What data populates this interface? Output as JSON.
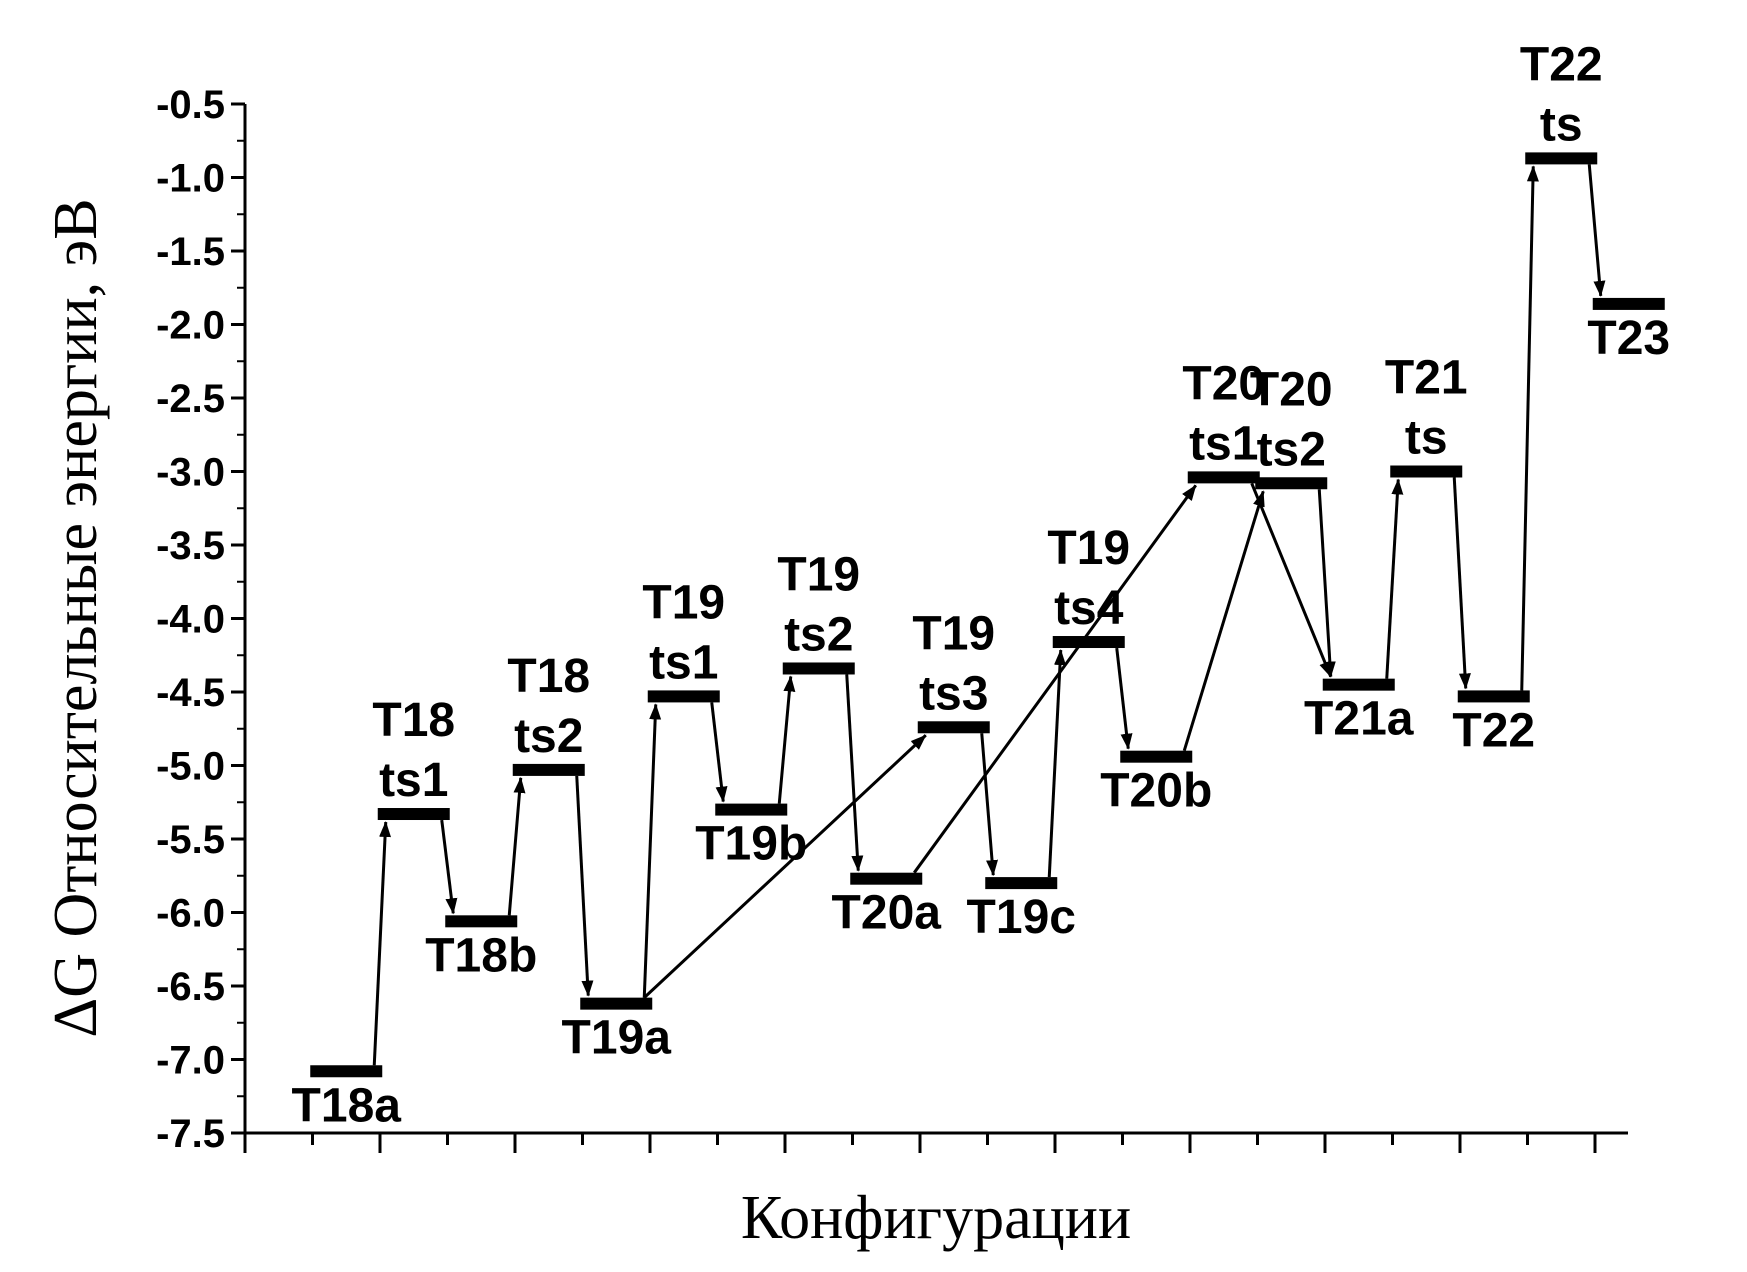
{
  "chart_data": {
    "type": "energy-level-diagram",
    "xlabel": "Конфигурации",
    "ylabel": "ΔG  Относительные энергии, эВ",
    "ylim": [
      -7.5,
      -0.5
    ],
    "yticks": [
      "-0.5",
      "-1.0",
      "-1.5",
      "-2.0",
      "-2.5",
      "-3.0",
      "-3.5",
      "-4.0",
      "-4.5",
      "-5.0",
      "-5.5",
      "-6.0",
      "-6.5",
      "-7.0",
      "-7.5"
    ],
    "levels": [
      {
        "id": "T18a",
        "x": 1.5,
        "y": -7.08,
        "label": [
          "T18a"
        ],
        "label_pos": "below"
      },
      {
        "id": "T18ts1",
        "x": 2.5,
        "y": -5.33,
        "label": [
          "T18",
          "ts1"
        ],
        "label_pos": "above"
      },
      {
        "id": "T18b",
        "x": 3.5,
        "y": -6.06,
        "label": [
          "T18b"
        ],
        "label_pos": "below"
      },
      {
        "id": "T18ts2",
        "x": 4.5,
        "y": -5.03,
        "label": [
          "T18",
          "ts2"
        ],
        "label_pos": "above"
      },
      {
        "id": "T19a",
        "x": 5.5,
        "y": -6.62,
        "label": [
          "T19a"
        ],
        "label_pos": "below"
      },
      {
        "id": "T19ts1",
        "x": 6.5,
        "y": -4.53,
        "label": [
          "T19",
          "ts1"
        ],
        "label_pos": "above"
      },
      {
        "id": "T19b",
        "x": 7.5,
        "y": -5.3,
        "label": [
          "T19b"
        ],
        "label_pos": "below"
      },
      {
        "id": "T19ts2",
        "x": 8.5,
        "y": -4.34,
        "label": [
          "T19",
          "ts2"
        ],
        "label_pos": "above"
      },
      {
        "id": "T20a",
        "x": 9.5,
        "y": -5.77,
        "label": [
          "T20a"
        ],
        "label_pos": "below"
      },
      {
        "id": "T19ts3",
        "x": 10.5,
        "y": -4.74,
        "label": [
          "T19",
          "ts3"
        ],
        "label_pos": "above"
      },
      {
        "id": "T19c",
        "x": 11.5,
        "y": -5.8,
        "label": [
          "T19c"
        ],
        "label_pos": "below"
      },
      {
        "id": "T19ts4",
        "x": 12.5,
        "y": -4.16,
        "label": [
          "T19",
          "ts4"
        ],
        "label_pos": "above"
      },
      {
        "id": "T20b",
        "x": 13.5,
        "y": -4.94,
        "label": [
          "T20b"
        ],
        "label_pos": "below"
      },
      {
        "id": "T20ts1",
        "x": 14.5,
        "y": -3.04,
        "label": [
          "T20",
          "ts1"
        ],
        "label_pos": "above"
      },
      {
        "id": "T20ts2",
        "x": 15.5,
        "y": -3.08,
        "label": [
          "T20",
          "ts2"
        ],
        "label_pos": "above"
      },
      {
        "id": "T21a",
        "x": 16.5,
        "y": -4.45,
        "label": [
          "T21a"
        ],
        "label_pos": "below"
      },
      {
        "id": "T21ts",
        "x": 17.5,
        "y": -3.0,
        "label": [
          "T21",
          "ts"
        ],
        "label_pos": "above"
      },
      {
        "id": "T22",
        "x": 18.5,
        "y": -4.53,
        "label": [
          "T22"
        ],
        "label_pos": "below"
      },
      {
        "id": "T22ts",
        "x": 19.5,
        "y": -0.87,
        "label": [
          "T22",
          "ts"
        ],
        "label_pos": "above"
      },
      {
        "id": "T23",
        "x": 20.5,
        "y": -1.86,
        "label": [
          "T23"
        ],
        "label_pos": "below"
      }
    ],
    "transitions": [
      [
        "T18a",
        "T18ts1"
      ],
      [
        "T18ts1",
        "T18b"
      ],
      [
        "T18b",
        "T18ts2"
      ],
      [
        "T18ts2",
        "T19a"
      ],
      [
        "T19a",
        "T19ts1"
      ],
      [
        "T19ts1",
        "T19b"
      ],
      [
        "T19b",
        "T19ts2"
      ],
      [
        "T19ts2",
        "T20a"
      ],
      [
        "T19a",
        "T19ts3"
      ],
      [
        "T20a",
        "T20ts1"
      ],
      [
        "T19ts3",
        "T19c"
      ],
      [
        "T19c",
        "T19ts4"
      ],
      [
        "T19ts4",
        "T20b"
      ],
      [
        "T20b",
        "T20ts2"
      ],
      [
        "T20ts1",
        "T21a"
      ],
      [
        "T20ts2",
        "T21a"
      ],
      [
        "T21a",
        "T21ts"
      ],
      [
        "T21ts",
        "T22"
      ],
      [
        "T22",
        "T22ts"
      ],
      [
        "T22ts",
        "T23"
      ]
    ]
  }
}
